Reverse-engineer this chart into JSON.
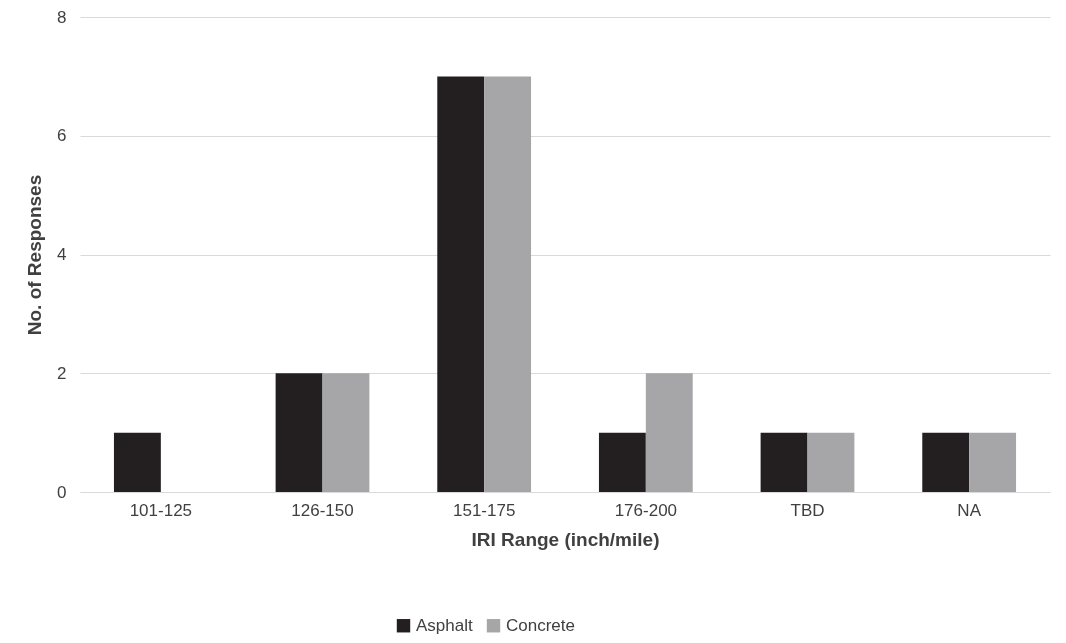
{
  "chart_data": {
    "type": "bar",
    "xlabel": "IRI Range (inch/mile)",
    "ylabel": "No. of Responses",
    "categories": [
      "101-125",
      "126-150",
      "151-175",
      "176-200",
      "TBD",
      "NA"
    ],
    "series": [
      {
        "name": "Asphalt",
        "color": "#231f20",
        "values": [
          1,
          2,
          7,
          1,
          1,
          1
        ]
      },
      {
        "name": "Concrete",
        "color": "#a6a6a8",
        "values": [
          0,
          2,
          7,
          2,
          1,
          1
        ]
      }
    ],
    "ylim": [
      0,
      8
    ],
    "yticks": [
      0,
      2,
      4,
      6,
      8
    ],
    "grid": "y",
    "legend": "bottom"
  }
}
